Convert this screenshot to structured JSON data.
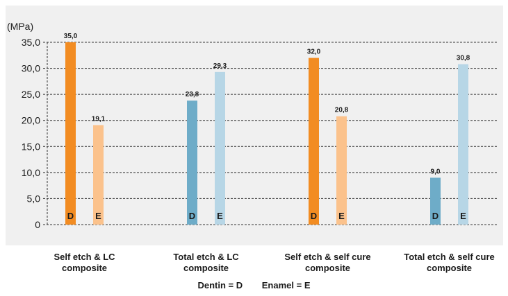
{
  "chart_data": {
    "type": "bar",
    "y_unit": "(MPa)",
    "ylim": [
      0,
      35
    ],
    "y_ticks": [
      "0",
      "5,0",
      "10,0",
      "15,0",
      "20,0",
      "25,0",
      "30,0",
      "35,0"
    ],
    "grid": "horizontal dashed",
    "groups": [
      {
        "label_line1": "Self etch & LC",
        "label_line2": "composite",
        "bars": [
          {
            "letter": "D",
            "value": 35.0,
            "value_label": "35,0",
            "color": "#F28C22"
          },
          {
            "letter": "E",
            "value": 19.1,
            "value_label": "19,1",
            "color": "#FBC28C"
          }
        ]
      },
      {
        "label_line1": "Total etch & LC",
        "label_line2": "composite",
        "bars": [
          {
            "letter": "D",
            "value": 23.8,
            "value_label": "23,8",
            "color": "#6EACC8"
          },
          {
            "letter": "E",
            "value": 29.3,
            "value_label": "29,3",
            "color": "#B7D6E6"
          }
        ]
      },
      {
        "label_line1": "Self etch & self cure",
        "label_line2": "composite",
        "bars": [
          {
            "letter": "D",
            "value": 32.0,
            "value_label": "32,0",
            "color": "#F28C22"
          },
          {
            "letter": "E",
            "value": 20.8,
            "value_label": "20,8",
            "color": "#FBC28C"
          }
        ]
      },
      {
        "label_line1": "Total etch & self cure",
        "label_line2": "composite",
        "bars": [
          {
            "letter": "D",
            "value": 9.0,
            "value_label": "9,0",
            "color": "#6EACC8"
          },
          {
            "letter": "E",
            "value": 30.8,
            "value_label": "30,8",
            "color": "#B7D6E6"
          }
        ]
      }
    ],
    "legend": {
      "dentin": "Dentin = D",
      "enamel": "Enamel = E"
    },
    "plot_background": "#F0F0F0"
  }
}
